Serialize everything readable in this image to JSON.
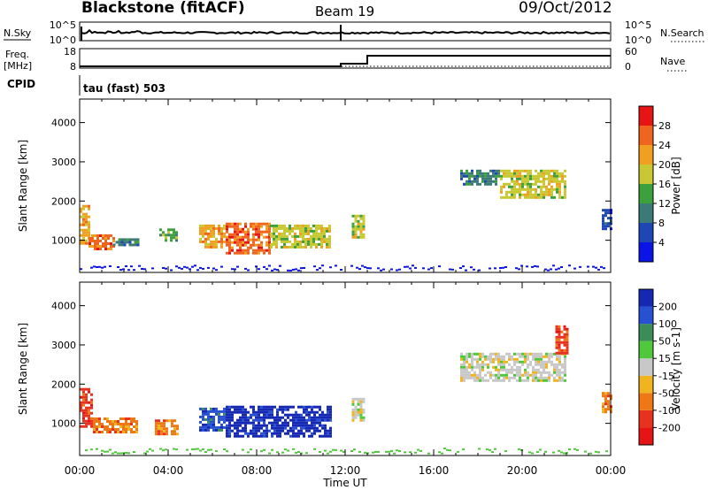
{
  "header": {
    "station": "Blackstone (fitACF)",
    "beam": "Beam 19",
    "date": "09/Oct/2012"
  },
  "top_panels": {
    "nsky": {
      "label": "N.Sky",
      "ticks": [
        "10^5",
        "10^0"
      ]
    },
    "nsearch": {
      "label": "N.Search",
      "ticks": [
        "10^5",
        "10^0"
      ]
    },
    "freq": {
      "label_line1": "Freq.",
      "label_line2": "[MHz]",
      "ticks": [
        18,
        8
      ]
    },
    "nave": {
      "label": "Nave",
      "ticks": [
        60,
        0
      ]
    },
    "cpid": {
      "label": "CPID",
      "value": "tau (fast) 503"
    }
  },
  "chart_data": [
    {
      "type": "heatmap",
      "name": "power",
      "xlabel": "",
      "ylabel": "Slant Range [km]",
      "x_ticks": [
        "00:00",
        "04:00",
        "08:00",
        "12:00",
        "16:00",
        "20:00",
        "00:00"
      ],
      "x_range_hours": [
        0,
        24
      ],
      "y_ticks": [
        1000,
        2000,
        3000,
        4000
      ],
      "y_range_km": [
        180,
        4600
      ],
      "colorbar": {
        "label": "Power [dB]",
        "tick_labels": [
          "4",
          "8",
          "12",
          "16",
          "20",
          "24",
          "28"
        ],
        "colors": [
          "#0a14e6",
          "#1e46b4",
          "#3c7a78",
          "#3ca03c",
          "#c8c832",
          "#f0a01e",
          "#f0641e",
          "#e61414"
        ]
      },
      "echo_regions": [
        {
          "t_start": 0.0,
          "t_end": 0.4,
          "r_low": 900,
          "r_high": 1900,
          "level": 5
        },
        {
          "t_start": 0.4,
          "t_end": 1.5,
          "r_low": 750,
          "r_high": 1150,
          "level": 6
        },
        {
          "t_start": 1.5,
          "t_end": 2.6,
          "r_low": 900,
          "r_high": 1050,
          "level": 2
        },
        {
          "t_start": 3.6,
          "t_end": 4.4,
          "r_low": 1000,
          "r_high": 1300,
          "level": 3
        },
        {
          "t_start": 5.4,
          "t_end": 6.6,
          "r_low": 800,
          "r_high": 1400,
          "level": 5
        },
        {
          "t_start": 6.6,
          "t_end": 8.6,
          "r_low": 650,
          "r_high": 1450,
          "level": 6
        },
        {
          "t_start": 8.6,
          "t_end": 11.3,
          "r_low": 850,
          "r_high": 1400,
          "level": 4
        },
        {
          "t_start": 12.3,
          "t_end": 12.9,
          "r_low": 1050,
          "r_high": 1650,
          "level": 4
        },
        {
          "t_start": 17.2,
          "t_end": 19.0,
          "r_low": 2400,
          "r_high": 2800,
          "level": 2
        },
        {
          "t_start": 19.0,
          "t_end": 22.0,
          "r_low": 2100,
          "r_high": 2800,
          "level": 4
        },
        {
          "t_start": 23.6,
          "t_end": 24.0,
          "r_low": 1300,
          "r_high": 1800,
          "level": 1
        }
      ],
      "ground_band": {
        "r_low": 180,
        "r_high": 380,
        "level": 0
      }
    },
    {
      "type": "heatmap",
      "name": "velocity",
      "xlabel": "Time UT",
      "ylabel": "Slant Range [km]",
      "x_ticks": [
        "00:00",
        "04:00",
        "08:00",
        "12:00",
        "16:00",
        "20:00",
        "00:00"
      ],
      "x_range_hours": [
        0,
        24
      ],
      "y_ticks": [
        1000,
        2000,
        3000,
        4000
      ],
      "y_range_km": [
        180,
        4600
      ],
      "colorbar": {
        "label": "Velocity [m s-1]",
        "tick_labels": [
          "200",
          "100",
          "50",
          "15",
          "-15",
          "-50",
          "-100",
          "-200"
        ],
        "colors": [
          "#1428b4",
          "#2850d2",
          "#3c8c5a",
          "#50c83c",
          "#c8c8c8",
          "#f0b41e",
          "#f07814",
          "#e6321e",
          "#e61414"
        ]
      },
      "echo_regions": [
        {
          "t_start": 0.0,
          "t_end": 0.6,
          "r_low": 900,
          "r_high": 1900,
          "level": 7
        },
        {
          "t_start": 0.6,
          "t_end": 2.6,
          "r_low": 750,
          "r_high": 1150,
          "level": 6
        },
        {
          "t_start": 3.4,
          "t_end": 4.4,
          "r_low": 700,
          "r_high": 1100,
          "level": 6
        },
        {
          "t_start": 5.4,
          "t_end": 6.6,
          "r_low": 800,
          "r_high": 1400,
          "level": 1
        },
        {
          "t_start": 6.6,
          "t_end": 11.3,
          "r_low": 700,
          "r_high": 1450,
          "level": 0
        },
        {
          "t_start": 12.3,
          "t_end": 12.9,
          "r_low": 1050,
          "r_high": 1650,
          "level": 4
        },
        {
          "t_start": 17.2,
          "t_end": 22.0,
          "r_low": 2100,
          "r_high": 2800,
          "level": 4
        },
        {
          "t_start": 21.5,
          "t_end": 22.0,
          "r_low": 2800,
          "r_high": 3500,
          "level": 7
        },
        {
          "t_start": 23.6,
          "t_end": 24.0,
          "r_low": 1300,
          "r_high": 1800,
          "level": 6
        }
      ],
      "ground_band": {
        "r_low": 180,
        "r_high": 380,
        "level": 3
      }
    }
  ]
}
